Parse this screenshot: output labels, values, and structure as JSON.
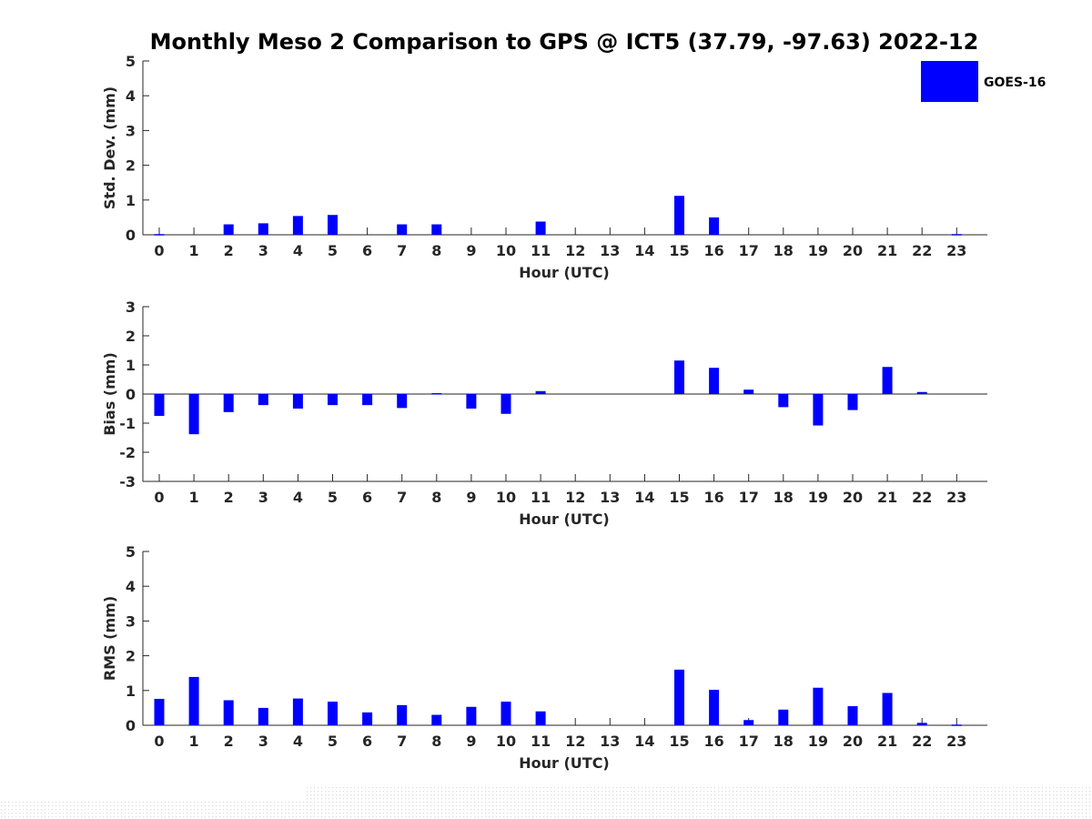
{
  "title": "Monthly Meso 2 Comparison to GPS @ ICT5 (37.79, -97.63) 2022-12",
  "legend": {
    "label": "GOES-16",
    "color": "#0000ff"
  },
  "colors": {
    "bar": "#0000ff",
    "axis": "#262626"
  },
  "chart_data": [
    {
      "type": "bar",
      "name": "stddev",
      "xlabel": "Hour (UTC)",
      "ylabel": "Std. Dev. (mm)",
      "ylim": [
        0,
        5
      ],
      "yticks": [
        0,
        1,
        2,
        3,
        4,
        5
      ],
      "categories": [
        "0",
        "1",
        "2",
        "3",
        "4",
        "5",
        "6",
        "7",
        "8",
        "9",
        "10",
        "11",
        "12",
        "13",
        "14",
        "15",
        "16",
        "17",
        "18",
        "19",
        "20",
        "21",
        "22",
        "23"
      ],
      "values": [
        0.02,
        null,
        0.3,
        0.33,
        0.54,
        0.57,
        null,
        0.3,
        0.3,
        null,
        null,
        0.38,
        null,
        null,
        null,
        1.12,
        0.5,
        null,
        null,
        null,
        null,
        null,
        null,
        0.02
      ],
      "grid": false
    },
    {
      "type": "bar",
      "name": "bias",
      "xlabel": "Hour (UTC)",
      "ylabel": "Bias (mm)",
      "ylim": [
        -3,
        3
      ],
      "yticks": [
        -3,
        -2,
        -1,
        0,
        1,
        2,
        3
      ],
      "categories": [
        "0",
        "1",
        "2",
        "3",
        "4",
        "5",
        "6",
        "7",
        "8",
        "9",
        "10",
        "11",
        "12",
        "13",
        "14",
        "15",
        "16",
        "17",
        "18",
        "19",
        "20",
        "21",
        "22",
        "23"
      ],
      "values": [
        -0.75,
        -1.38,
        -0.62,
        -0.38,
        -0.5,
        -0.38,
        -0.38,
        -0.48,
        0.03,
        -0.5,
        -0.68,
        0.1,
        null,
        null,
        null,
        1.15,
        0.9,
        0.15,
        -0.45,
        -1.08,
        -0.55,
        0.93,
        0.07,
        null
      ],
      "grid": false
    },
    {
      "type": "bar",
      "name": "rms",
      "xlabel": "Hour (UTC)",
      "ylabel": "RMS (mm)",
      "ylim": [
        0,
        5
      ],
      "yticks": [
        0,
        1,
        2,
        3,
        4,
        5
      ],
      "categories": [
        "0",
        "1",
        "2",
        "3",
        "4",
        "5",
        "6",
        "7",
        "8",
        "9",
        "10",
        "11",
        "12",
        "13",
        "14",
        "15",
        "16",
        "17",
        "18",
        "19",
        "20",
        "21",
        "22",
        "23"
      ],
      "values": [
        0.76,
        1.39,
        0.72,
        0.5,
        0.77,
        0.68,
        0.37,
        0.58,
        0.3,
        0.53,
        0.68,
        0.4,
        null,
        null,
        null,
        1.6,
        1.02,
        0.15,
        0.45,
        1.08,
        0.55,
        0.93,
        0.07,
        0.02
      ],
      "grid": false
    }
  ]
}
